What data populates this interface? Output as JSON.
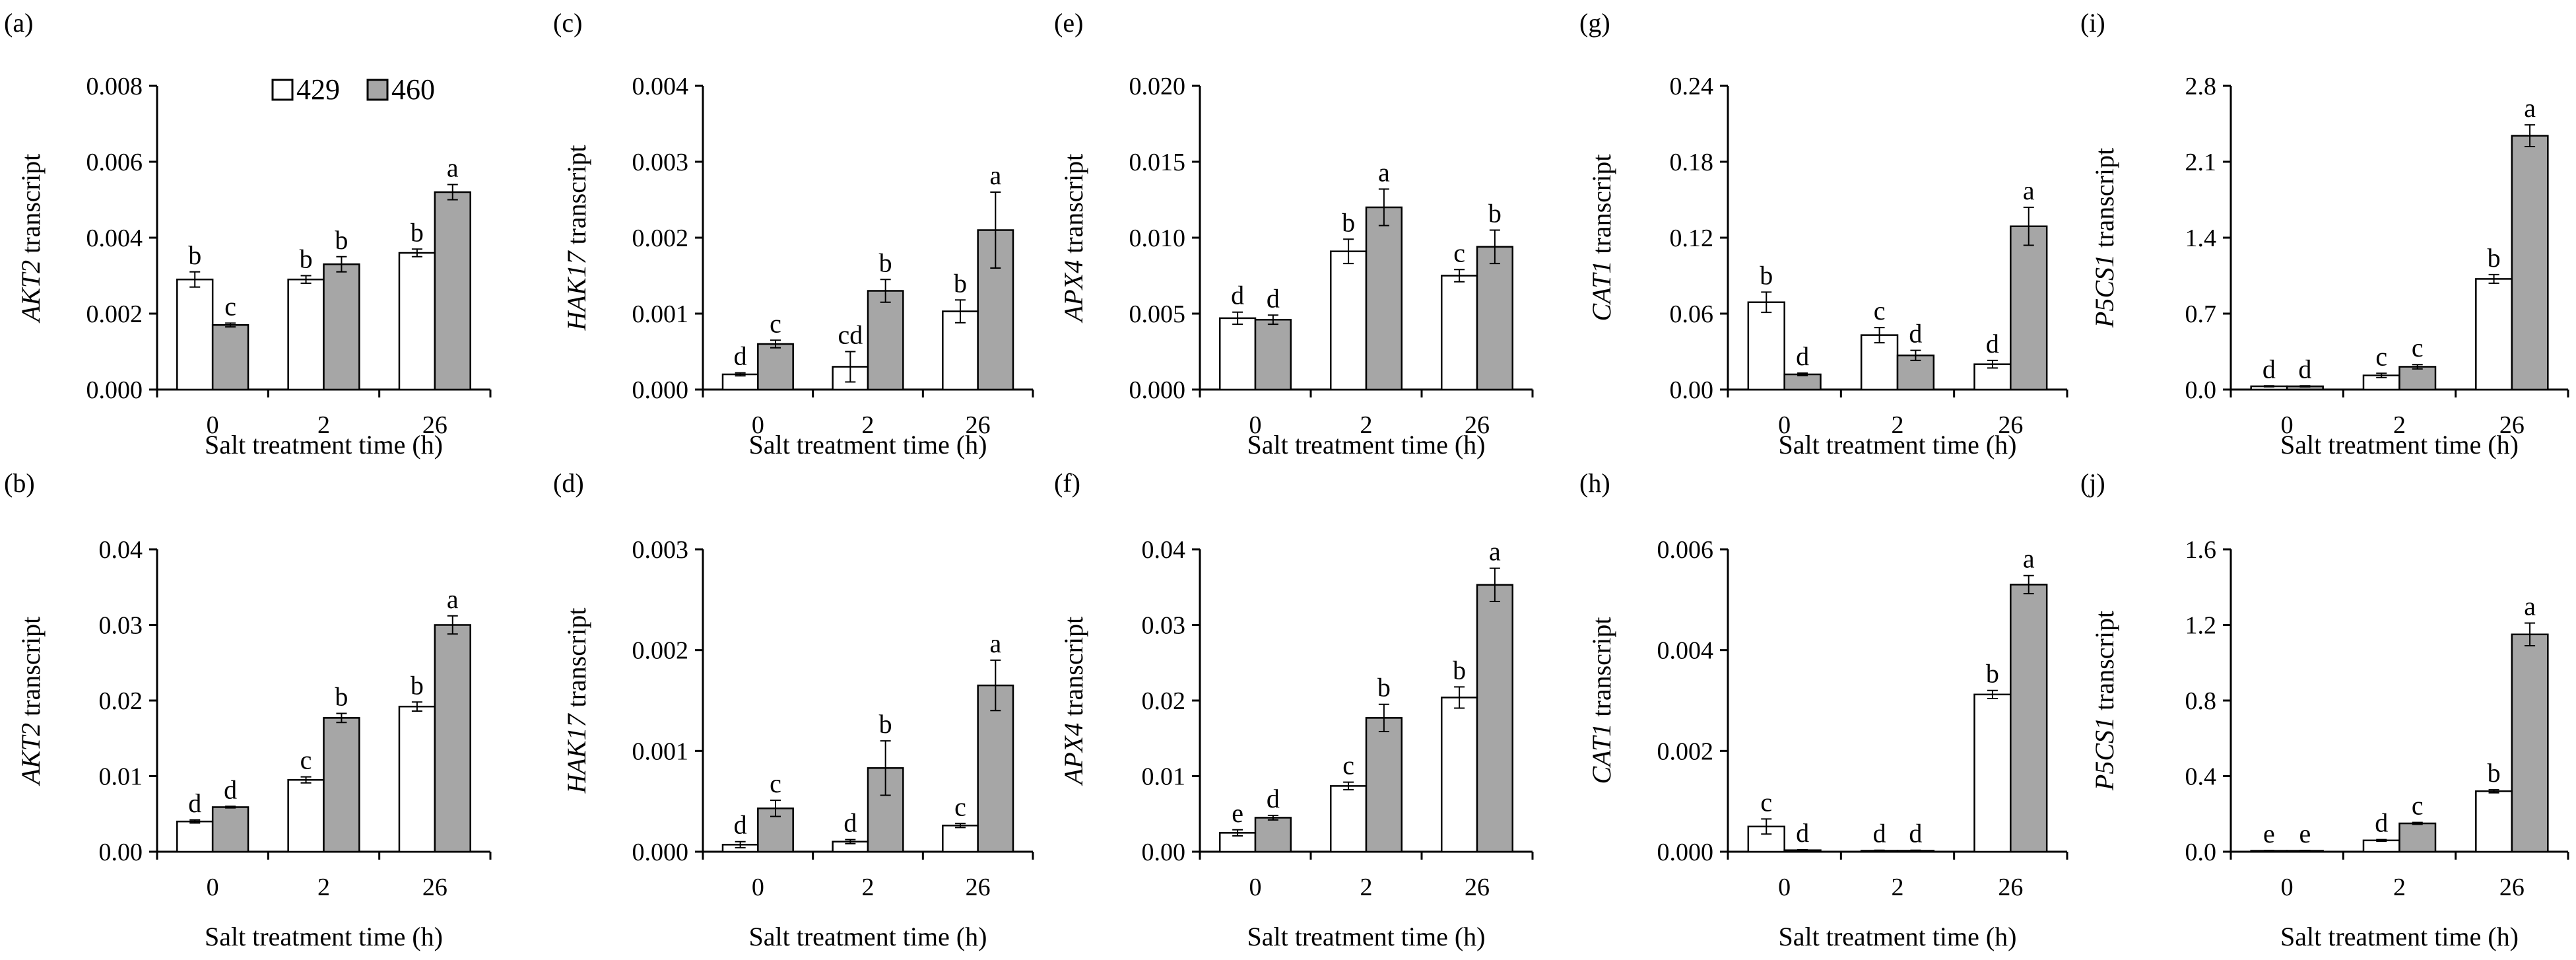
{
  "legend": [
    "429",
    "460"
  ],
  "chart_data": [
    {
      "panel": "(a)",
      "type": "bar",
      "gene": "AKT2",
      "ylabel_suffix": " transcript",
      "xlabel": "Salt treatment time (h)",
      "categories": [
        "0",
        "2",
        "26"
      ],
      "ylim": [
        0,
        0.008
      ],
      "yticks": [
        "0.000",
        "0.002",
        "0.004",
        "0.006",
        "0.008"
      ],
      "series": [
        {
          "name": "429",
          "values": [
            0.0029,
            0.0029,
            0.0036
          ],
          "errors": [
            0.0002,
            0.0001,
            0.0001
          ],
          "letters": [
            "b",
            "b",
            "b"
          ]
        },
        {
          "name": "460",
          "values": [
            0.0017,
            0.0033,
            0.0052
          ],
          "errors": [
            5e-05,
            0.0002,
            0.0002
          ],
          "letters": [
            "c",
            "b",
            "a"
          ]
        }
      ]
    },
    {
      "panel": "(b)",
      "type": "bar",
      "gene": "AKT2",
      "ylabel_suffix": "  transcript",
      "xlabel": "Salt treatment time (h)",
      "categories": [
        "0",
        "2",
        "26"
      ],
      "ylim": [
        0,
        0.04
      ],
      "yticks": [
        "0.00",
        "0.01",
        "0.02",
        "0.03",
        "0.04"
      ],
      "series": [
        {
          "name": "429",
          "values": [
            0.004,
            0.0095,
            0.0192
          ],
          "errors": [
            0.0002,
            0.0004,
            0.0006
          ],
          "letters": [
            "d",
            "c",
            "b"
          ]
        },
        {
          "name": "460",
          "values": [
            0.0059,
            0.0177,
            0.03
          ],
          "errors": [
            0.0001,
            0.0006,
            0.0012
          ],
          "letters": [
            "d",
            "b",
            "a"
          ]
        }
      ]
    },
    {
      "panel": "(c)",
      "type": "bar",
      "gene": "HAK17",
      "ylabel_suffix": " transcript",
      "xlabel": "Salt treatment time (h)",
      "categories": [
        "0",
        "2",
        "26"
      ],
      "ylim": [
        0,
        0.004
      ],
      "yticks": [
        "0.000",
        "0.001",
        "0.002",
        "0.003",
        "0.004"
      ],
      "series": [
        {
          "name": "429",
          "values": [
            0.0002,
            0.0003,
            0.00103
          ],
          "errors": [
            2e-05,
            0.0002,
            0.00015
          ],
          "letters": [
            "d",
            "cd",
            "b"
          ]
        },
        {
          "name": "460",
          "values": [
            0.0006,
            0.0013,
            0.0021
          ],
          "errors": [
            5e-05,
            0.00015,
            0.0005
          ],
          "letters": [
            "c",
            "b",
            "a"
          ]
        }
      ]
    },
    {
      "panel": "(d)",
      "type": "bar",
      "gene": "HAK17",
      "ylabel_suffix": " transcript",
      "xlabel": "Salt treatment time (h)",
      "categories": [
        "0",
        "2",
        "26"
      ],
      "ylim": [
        0,
        0.003
      ],
      "yticks": [
        "0.000",
        "0.001",
        "0.002",
        "0.003"
      ],
      "series": [
        {
          "name": "429",
          "values": [
            7e-05,
            0.0001,
            0.00026
          ],
          "errors": [
            3e-05,
            2e-05,
            2e-05
          ],
          "letters": [
            "d",
            "d",
            "c"
          ]
        },
        {
          "name": "460",
          "values": [
            0.00043,
            0.00083,
            0.00165
          ],
          "errors": [
            8e-05,
            0.00027,
            0.00025
          ],
          "letters": [
            "c",
            "b",
            "a"
          ]
        }
      ]
    },
    {
      "panel": "(e)",
      "type": "bar",
      "gene": "APX4",
      "ylabel_suffix": " transcript",
      "xlabel": "Salt treatment time (h)",
      "categories": [
        "0",
        "2",
        "26"
      ],
      "ylim": [
        0,
        0.02
      ],
      "yticks": [
        "0.000",
        "0.005",
        "0.010",
        "0.015",
        "0.020"
      ],
      "series": [
        {
          "name": "429",
          "values": [
            0.0047,
            0.0091,
            0.0075
          ],
          "errors": [
            0.0004,
            0.0008,
            0.0004
          ],
          "letters": [
            "d",
            "b",
            "c"
          ]
        },
        {
          "name": "460",
          "values": [
            0.0046,
            0.012,
            0.0094
          ],
          "errors": [
            0.0003,
            0.0012,
            0.0011
          ],
          "letters": [
            "d",
            "a",
            "b"
          ]
        }
      ]
    },
    {
      "panel": "(f)",
      "type": "bar",
      "gene": "APX4",
      "ylabel_suffix": " transcript",
      "xlabel": "Salt treatment time (h)",
      "categories": [
        "0",
        "2",
        "26"
      ],
      "ylim": [
        0,
        0.04
      ],
      "yticks": [
        "0.00",
        "0.01",
        "0.02",
        "0.03",
        "0.04"
      ],
      "series": [
        {
          "name": "429",
          "values": [
            0.0025,
            0.0087,
            0.0204
          ],
          "errors": [
            0.0004,
            0.0005,
            0.0014
          ],
          "letters": [
            "e",
            "c",
            "b"
          ]
        },
        {
          "name": "460",
          "values": [
            0.0045,
            0.0177,
            0.0353
          ],
          "errors": [
            0.0003,
            0.0018,
            0.0022
          ],
          "letters": [
            "d",
            "b",
            "a"
          ]
        }
      ]
    },
    {
      "panel": "(g)",
      "type": "bar",
      "gene": "CAT1",
      "ylabel_suffix": " transcript",
      "xlabel": "Salt treatment time (h)",
      "categories": [
        "0",
        "2",
        "26"
      ],
      "ylim": [
        0,
        0.24
      ],
      "yticks": [
        "0.00",
        "0.06",
        "0.12",
        "0.18",
        "0.24"
      ],
      "series": [
        {
          "name": "429",
          "values": [
            0.069,
            0.043,
            0.02
          ],
          "errors": [
            0.008,
            0.006,
            0.003
          ],
          "letters": [
            "b",
            "c",
            "d"
          ]
        },
        {
          "name": "460",
          "values": [
            0.012,
            0.027,
            0.129
          ],
          "errors": [
            0.001,
            0.004,
            0.015
          ],
          "letters": [
            "d",
            "d",
            "a"
          ]
        }
      ]
    },
    {
      "panel": "(h)",
      "type": "bar",
      "gene": "CAT1",
      "ylabel_suffix": " transcript",
      "xlabel": "Salt treatment time (h)",
      "categories": [
        "0",
        "2",
        "26"
      ],
      "ylim": [
        0,
        0.006
      ],
      "yticks": [
        "0.000",
        "0.002",
        "0.004",
        "0.006"
      ],
      "series": [
        {
          "name": "429",
          "values": [
            0.0005,
            2e-05,
            0.00312
          ],
          "errors": [
            0.00015,
            1e-05,
            8e-05
          ],
          "letters": [
            "c",
            "d",
            "b"
          ]
        },
        {
          "name": "460",
          "values": [
            3e-05,
            2e-05,
            0.0053
          ],
          "errors": [
            1e-05,
            1e-05,
            0.00018
          ],
          "letters": [
            "d",
            "d",
            "a"
          ]
        }
      ]
    },
    {
      "panel": "(i)",
      "type": "bar",
      "gene": "P5CS1",
      "ylabel_suffix": " transcript",
      "xlabel": "Salt treatment time (h)",
      "categories": [
        "0",
        "2",
        "26"
      ],
      "ylim": [
        0,
        2.8
      ],
      "yticks": [
        "0.0",
        "0.7",
        "1.4",
        "2.1",
        "2.8"
      ],
      "series": [
        {
          "name": "429",
          "values": [
            0.03,
            0.13,
            1.02
          ],
          "errors": [
            0.005,
            0.02,
            0.04
          ],
          "letters": [
            "d",
            "c",
            "b"
          ]
        },
        {
          "name": "460",
          "values": [
            0.03,
            0.21,
            2.34
          ],
          "errors": [
            0.005,
            0.02,
            0.1
          ],
          "letters": [
            "d",
            "c",
            "a"
          ]
        }
      ]
    },
    {
      "panel": "(j)",
      "type": "bar",
      "gene": "P5CS1",
      "ylabel_suffix": " transcript",
      "xlabel": "Salt treatment time (h)",
      "categories": [
        "0",
        "2",
        "26"
      ],
      "ylim": [
        0,
        1.6
      ],
      "yticks": [
        "0.0",
        "0.4",
        "0.8",
        "1.2",
        "1.6"
      ],
      "series": [
        {
          "name": "429",
          "values": [
            0.005,
            0.06,
            0.32
          ],
          "errors": [
            0.002,
            0.004,
            0.008
          ],
          "letters": [
            "e",
            "d",
            "b"
          ]
        },
        {
          "name": "460",
          "values": [
            0.005,
            0.15,
            1.15
          ],
          "errors": [
            0.002,
            0.005,
            0.06
          ],
          "letters": [
            "e",
            "c",
            "a"
          ]
        }
      ]
    }
  ]
}
